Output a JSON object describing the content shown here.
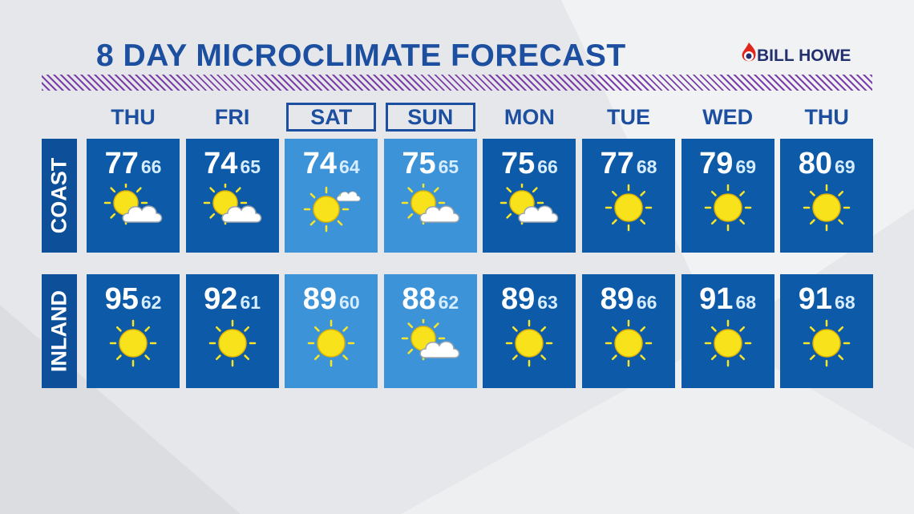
{
  "header": {
    "title": "8 DAY MICROCLIMATE FORECAST",
    "logo": "BILL HOWE"
  },
  "days": [
    "THU",
    "FRI",
    "SAT",
    "SUN",
    "MON",
    "TUE",
    "WED",
    "THU"
  ],
  "regions": [
    {
      "name": "COAST",
      "highs": [
        77,
        74,
        74,
        75,
        75,
        77,
        79,
        80
      ],
      "lows": [
        66,
        65,
        64,
        65,
        66,
        68,
        69,
        69
      ]
    },
    {
      "name": "INLAND",
      "highs": [
        95,
        92,
        89,
        88,
        89,
        89,
        91,
        91
      ],
      "lows": [
        62,
        61,
        60,
        62,
        63,
        66,
        68,
        68
      ]
    }
  ]
}
